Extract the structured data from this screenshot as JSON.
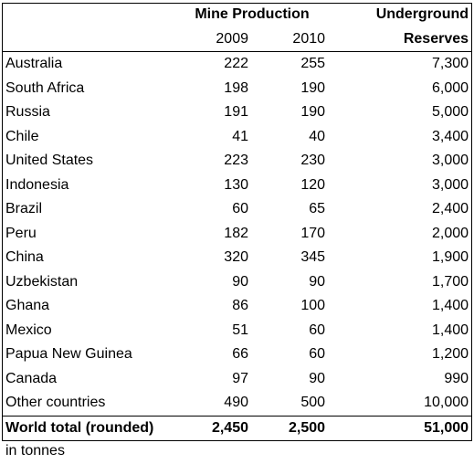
{
  "table": {
    "header": {
      "mine_production": "Mine Production",
      "underground": "Underground",
      "year_2009": "2009",
      "year_2010": "2010",
      "reserves": "Reserves"
    },
    "rows": [
      {
        "country": "Australia",
        "p2009": "222",
        "p2010": "255",
        "reserves": "7,300"
      },
      {
        "country": "South Africa",
        "p2009": "198",
        "p2010": "190",
        "reserves": "6,000"
      },
      {
        "country": "Russia",
        "p2009": "191",
        "p2010": "190",
        "reserves": "5,000"
      },
      {
        "country": "Chile",
        "p2009": "41",
        "p2010": "40",
        "reserves": "3,400"
      },
      {
        "country": "United States",
        "p2009": "223",
        "p2010": "230",
        "reserves": "3,000"
      },
      {
        "country": "Indonesia",
        "p2009": "130",
        "p2010": "120",
        "reserves": "3,000"
      },
      {
        "country": "Brazil",
        "p2009": "60",
        "p2010": "65",
        "reserves": "2,400"
      },
      {
        "country": "Peru",
        "p2009": "182",
        "p2010": "170",
        "reserves": "2,000"
      },
      {
        "country": "China",
        "p2009": "320",
        "p2010": "345",
        "reserves": "1,900"
      },
      {
        "country": "Uzbekistan",
        "p2009": "90",
        "p2010": "90",
        "reserves": "1,700"
      },
      {
        "country": "Ghana",
        "p2009": "86",
        "p2010": "100",
        "reserves": "1,400"
      },
      {
        "country": "Mexico",
        "p2009": "51",
        "p2010": "60",
        "reserves": "1,400"
      },
      {
        "country": "Papua New Guinea",
        "p2009": "66",
        "p2010": "60",
        "reserves": "1,200"
      },
      {
        "country": "Canada",
        "p2009": "97",
        "p2010": "90",
        "reserves": "990"
      },
      {
        "country": "Other countries",
        "p2009": "490",
        "p2010": "500",
        "reserves": "10,000"
      }
    ],
    "total": {
      "country": "World total (rounded)",
      "p2009": "2,450",
      "p2010": "2,500",
      "reserves": "51,000"
    }
  },
  "footnote": "in tonnes"
}
